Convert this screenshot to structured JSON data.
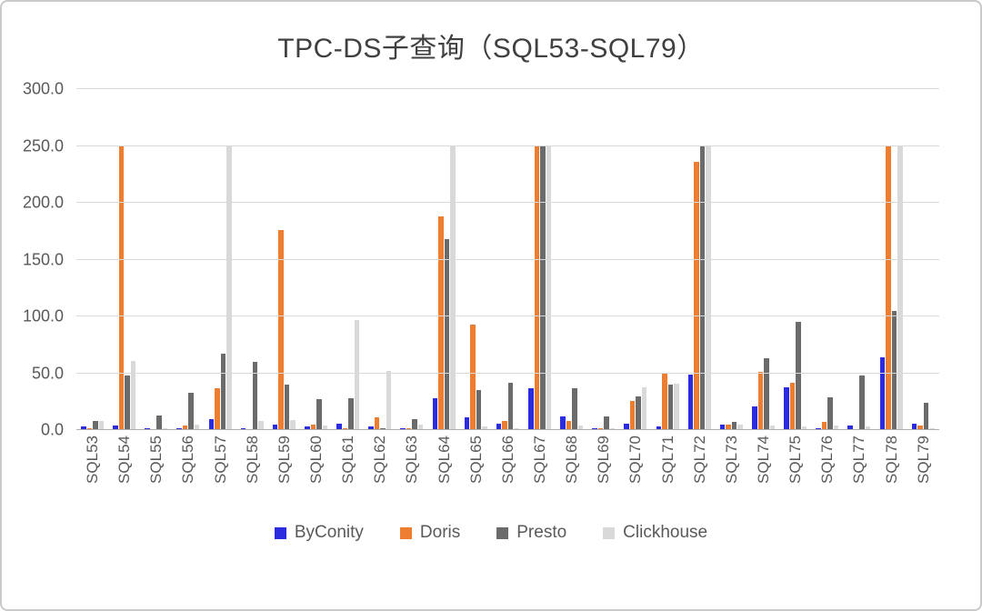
{
  "chart_data": {
    "type": "bar",
    "title": "TPC-DS子查询（SQL53-SQL79）",
    "categories": [
      "SQL53",
      "SQL54",
      "SQL55",
      "SQL56",
      "SQL57",
      "SQL58",
      "SQL59",
      "SQL60",
      "SQL61",
      "SQL62",
      "SQL63",
      "SQL64",
      "SQL65",
      "SQL66",
      "SQL67",
      "SQL68",
      "SQL69",
      "SQL70",
      "SQL71",
      "SQL72",
      "SQL73",
      "SQL74",
      "SQL75",
      "SQL76",
      "SQL77",
      "SQL78",
      "SQL79"
    ],
    "series": [
      {
        "name": "ByConity",
        "color": "#2b2be0",
        "values": [
          3,
          4,
          2,
          2,
          10,
          2,
          5,
          3,
          6,
          3,
          2,
          28,
          11,
          6,
          37,
          12,
          2,
          6,
          3,
          49,
          5,
          21,
          38,
          2,
          4,
          64,
          6
        ]
      },
      {
        "name": "Doris",
        "color": "#ed7d31",
        "values": [
          2,
          250,
          1,
          4,
          37,
          1,
          176,
          5,
          2,
          11,
          2,
          188,
          93,
          8,
          250,
          8,
          2,
          26,
          50,
          236,
          5,
          51,
          42,
          7,
          1,
          250,
          4
        ]
      },
      {
        "name": "Presto",
        "color": "#6b6b6b",
        "values": [
          8,
          48,
          13,
          33,
          67,
          60,
          40,
          27,
          28,
          2,
          10,
          168,
          35,
          42,
          250,
          37,
          12,
          30,
          40,
          250,
          7,
          63,
          95,
          29,
          48,
          105,
          24
        ]
      },
      {
        "name": "Clickhouse",
        "color": "#d9d9d9",
        "values": [
          8,
          61,
          2,
          5,
          250,
          8,
          9,
          4,
          97,
          52,
          5,
          250,
          3,
          2,
          250,
          4,
          2,
          38,
          41,
          250,
          5,
          4,
          3,
          4,
          3,
          250,
          2
        ]
      }
    ],
    "ylim": [
      0,
      300
    ],
    "ytick_step": 50,
    "grid": true,
    "legend_position": "bottom"
  }
}
